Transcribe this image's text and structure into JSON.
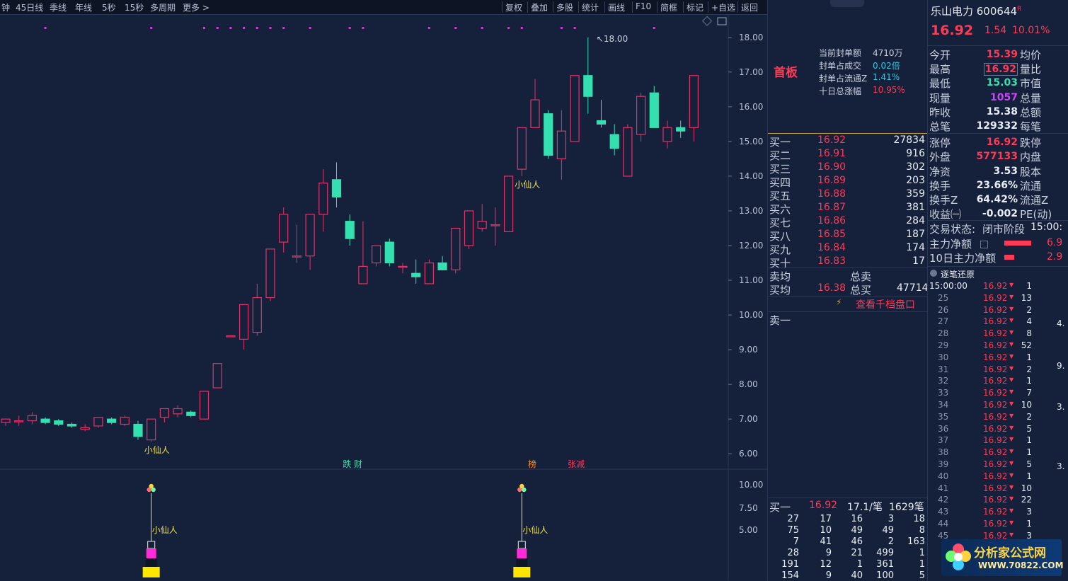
{
  "toolbar": {
    "left_items": [
      "钟",
      "45日线",
      "季线",
      "年线",
      "5秒",
      "15秒",
      "多周期",
      "更多 >"
    ],
    "right_items": [
      "复权",
      "叠加",
      "多股",
      "统计",
      "画线",
      "F10",
      "简框",
      "标记",
      "+自选",
      "返回"
    ]
  },
  "chart_data": {
    "type": "candlestick",
    "ylim": [
      5.8,
      18.2
    ],
    "y_ticks": [
      "18.00",
      "17.00",
      "16.00",
      "15.00",
      "14.00",
      "13.00",
      "12.00",
      "11.00",
      "10.00",
      "9.00",
      "8.00",
      "7.00",
      "6.00"
    ],
    "sub_ticks": [
      "10.00",
      "7.50",
      "5.00"
    ],
    "max_label": "18.00",
    "candles": [
      {
        "o": 6.9,
        "h": 7.0,
        "l": 6.8,
        "c": 7.0
      },
      {
        "o": 6.95,
        "h": 7.1,
        "l": 6.8,
        "c": 6.95
      },
      {
        "o": 6.95,
        "h": 7.2,
        "l": 6.85,
        "c": 7.1
      },
      {
        "o": 7.0,
        "h": 7.05,
        "l": 6.85,
        "c": 6.9
      },
      {
        "o": 6.95,
        "h": 7.0,
        "l": 6.8,
        "c": 6.85
      },
      {
        "o": 6.85,
        "h": 6.9,
        "l": 6.75,
        "c": 6.8
      },
      {
        "o": 6.7,
        "h": 6.85,
        "l": 6.65,
        "c": 6.75
      },
      {
        "o": 6.8,
        "h": 7.05,
        "l": 6.75,
        "c": 7.05
      },
      {
        "o": 7.0,
        "h": 7.05,
        "l": 6.85,
        "c": 6.9
      },
      {
        "o": 6.85,
        "h": 7.1,
        "l": 6.8,
        "c": 7.05
      },
      {
        "o": 6.85,
        "h": 6.95,
        "l": 6.4,
        "c": 6.5
      },
      {
        "o": 6.4,
        "h": 7.0,
        "l": 6.35,
        "c": 7.0
      },
      {
        "o": 7.05,
        "h": 7.3,
        "l": 6.9,
        "c": 7.3
      },
      {
        "o": 7.15,
        "h": 7.4,
        "l": 7.05,
        "c": 7.3
      },
      {
        "o": 7.2,
        "h": 7.25,
        "l": 7.05,
        "c": 7.1
      },
      {
        "o": 7.0,
        "h": 7.8,
        "l": 7.0,
        "c": 7.8
      },
      {
        "o": 7.9,
        "h": 8.6,
        "l": 7.9,
        "c": 8.6
      },
      {
        "o": 9.4,
        "h": 9.4,
        "l": 9.4,
        "c": 9.4
      },
      {
        "o": 9.3,
        "h": 10.3,
        "l": 9.0,
        "c": 10.3
      },
      {
        "o": 9.5,
        "h": 10.9,
        "l": 9.4,
        "c": 10.5
      },
      {
        "o": 10.5,
        "h": 11.9,
        "l": 10.4,
        "c": 11.9
      },
      {
        "o": 12.1,
        "h": 13.1,
        "l": 11.8,
        "c": 12.9
      },
      {
        "o": 11.7,
        "h": 12.6,
        "l": 11.5,
        "c": 11.7
      },
      {
        "o": 11.7,
        "h": 12.9,
        "l": 11.3,
        "c": 12.9
      },
      {
        "o": 12.9,
        "h": 14.2,
        "l": 12.4,
        "c": 13.8
      },
      {
        "o": 13.9,
        "h": 14.4,
        "l": 13.1,
        "c": 13.4
      },
      {
        "o": 12.7,
        "h": 12.9,
        "l": 12.0,
        "c": 12.2
      },
      {
        "o": 10.9,
        "h": 12.7,
        "l": 10.9,
        "c": 11.4
      },
      {
        "o": 11.5,
        "h": 12.0,
        "l": 11.4,
        "c": 12.0
      },
      {
        "o": 12.1,
        "h": 12.2,
        "l": 11.4,
        "c": 11.5
      },
      {
        "o": 11.4,
        "h": 11.5,
        "l": 11.2,
        "c": 11.4
      },
      {
        "o": 11.2,
        "h": 11.6,
        "l": 10.9,
        "c": 11.1
      },
      {
        "o": 10.9,
        "h": 11.6,
        "l": 10.9,
        "c": 11.5
      },
      {
        "o": 11.5,
        "h": 11.7,
        "l": 11.3,
        "c": 11.3
      },
      {
        "o": 11.3,
        "h": 12.5,
        "l": 11.2,
        "c": 12.5
      },
      {
        "o": 12.0,
        "h": 13.0,
        "l": 11.9,
        "c": 13.0
      },
      {
        "o": 12.5,
        "h": 13.2,
        "l": 12.4,
        "c": 12.7
      },
      {
        "o": 12.6,
        "h": 13.1,
        "l": 12.0,
        "c": 12.6
      },
      {
        "o": 12.4,
        "h": 14.0,
        "l": 12.4,
        "c": 14.0
      },
      {
        "o": 14.2,
        "h": 15.4,
        "l": 14.0,
        "c": 15.4
      },
      {
        "o": 15.4,
        "h": 16.8,
        "l": 15.4,
        "c": 16.2
      },
      {
        "o": 15.8,
        "h": 15.9,
        "l": 14.5,
        "c": 14.6
      },
      {
        "o": 14.5,
        "h": 15.9,
        "l": 13.9,
        "c": 15.3
      },
      {
        "o": 15.0,
        "h": 16.9,
        "l": 15.0,
        "c": 16.9
      },
      {
        "o": 16.9,
        "h": 18.0,
        "l": 15.8,
        "c": 16.3
      },
      {
        "o": 15.6,
        "h": 16.2,
        "l": 15.4,
        "c": 15.5
      },
      {
        "o": 15.2,
        "h": 15.5,
        "l": 14.6,
        "c": 14.8
      },
      {
        "o": 14.0,
        "h": 15.5,
        "l": 14.0,
        "c": 15.4
      },
      {
        "o": 15.2,
        "h": 16.4,
        "l": 15.0,
        "c": 16.3
      },
      {
        "o": 16.4,
        "h": 16.6,
        "l": 15.4,
        "c": 15.4
      },
      {
        "o": 15.0,
        "h": 15.6,
        "l": 14.8,
        "c": 15.4
      },
      {
        "o": 15.4,
        "h": 15.6,
        "l": 15.1,
        "c": 15.3
      },
      {
        "o": 15.4,
        "h": 16.9,
        "l": 15.0,
        "c": 16.9
      }
    ],
    "annotations": [
      {
        "label": "小仙人",
        "candle": 11,
        "color": "#f0e04a"
      },
      {
        "label": "小仙人",
        "candle": 39,
        "color": "#f0e04a"
      }
    ],
    "bottom_badges": [
      {
        "label": "跌 财",
        "candle": 26,
        "color": "#35e0b0"
      },
      {
        "label": "榜",
        "candle": 40,
        "color": "#ff8a2a"
      },
      {
        "label": "张减",
        "candle": 43,
        "color": "#ff3a55"
      }
    ],
    "indicator_markers": [
      {
        "label": "小仙人",
        "candle": 11
      },
      {
        "label": "小仙人",
        "candle": 39
      }
    ],
    "top_dots": [
      3,
      11,
      15,
      16,
      17,
      18,
      19,
      20,
      21,
      23,
      26,
      27,
      32,
      34,
      36,
      38,
      39,
      42,
      43,
      49
    ]
  },
  "orderbook": {
    "badge": "首板",
    "seal_info": [
      {
        "label": "当前封单额",
        "value": "4710万",
        "color": "#c9d1e0"
      },
      {
        "label": "封单占成交",
        "value": "0.02倍",
        "color": "#33c9e0"
      },
      {
        "label": "封单占流通Z",
        "value": "1.41%",
        "color": "#33c9e0"
      },
      {
        "label": "十日总涨幅",
        "value": "10.95%",
        "color": "#ff3a55"
      }
    ],
    "bids": [
      {
        "label": "买一",
        "price": "16.92",
        "vol": "27834"
      },
      {
        "label": "买二",
        "price": "16.91",
        "vol": "916"
      },
      {
        "label": "买三",
        "price": "16.90",
        "vol": "302"
      },
      {
        "label": "买四",
        "price": "16.89",
        "vol": "203"
      },
      {
        "label": "买五",
        "price": "16.88",
        "vol": "359"
      },
      {
        "label": "买六",
        "price": "16.87",
        "vol": "381"
      },
      {
        "label": "买七",
        "price": "16.86",
        "vol": "284"
      },
      {
        "label": "买八",
        "price": "16.85",
        "vol": "187"
      },
      {
        "label": "买九",
        "price": "16.84",
        "vol": "174"
      },
      {
        "label": "买十",
        "price": "16.83",
        "vol": "17"
      }
    ],
    "avg_sell_label": "卖均",
    "total_sell_label": "总卖",
    "avg_buy_label": "买均",
    "avg_buy_price": "16.38",
    "total_buy_label": "总买",
    "total_buy": "47714",
    "link": "查看千档盘口",
    "sell_one": "卖一",
    "bottom_row": {
      "label": "买一",
      "price": "16.92",
      "per": "17.1/笔",
      "count": "1629笔"
    },
    "queue": [
      [
        "27",
        "17",
        "16",
        "3",
        "18"
      ],
      [
        "75",
        "10",
        "49",
        "49",
        "8"
      ],
      [
        "7",
        "41",
        "46",
        "2",
        "163"
      ],
      [
        "28",
        "9",
        "21",
        "499",
        "1"
      ],
      [
        "191",
        "12",
        "1",
        "361",
        "1"
      ],
      [
        "154",
        "9",
        "40",
        "100",
        "5"
      ]
    ]
  },
  "quote": {
    "name": "乐山电力 600644",
    "flag": "R",
    "price": "16.92",
    "change": "1.54",
    "pct": "10.01%",
    "rows": [
      {
        "l": "今开",
        "v": "15.39",
        "vc": "#ff3a55",
        "r": "均价"
      },
      {
        "l": "最高",
        "v": "16.92",
        "vc": "#ff3a55",
        "r": "量比",
        "boxed": true
      },
      {
        "l": "最低",
        "v": "15.03",
        "vc": "#35e0b0",
        "r": "市值"
      },
      {
        "l": "现量",
        "v": "1057",
        "vc": "#cc44ff",
        "r": "总量"
      },
      {
        "l": "昨收",
        "v": "15.38",
        "vc": "#e8edf5",
        "r": "总额"
      },
      {
        "l": "总笔",
        "v": "129332",
        "vc": "#e8edf5",
        "r": "每笔"
      },
      {
        "l": "涨停",
        "v": "16.92",
        "vc": "#ff3a55",
        "r": "跌停"
      },
      {
        "l": "外盘",
        "v": "577133",
        "vc": "#ff3a55",
        "r": "内盘"
      },
      {
        "l": "净资",
        "v": "3.53",
        "vc": "#e8edf5",
        "r": "股本"
      },
      {
        "l": "换手",
        "v": "23.66%",
        "vc": "#e8edf5",
        "r": "流通"
      },
      {
        "l": "换手Z",
        "v": "64.42%",
        "vc": "#e8edf5",
        "r": "流通Z"
      },
      {
        "l": "收益㈠",
        "v": "-0.002",
        "vc": "#e8edf5",
        "r": "PE(动)"
      }
    ],
    "status_label": "交易状态:",
    "status_value": "闭市阶段",
    "status_time": "15:00:",
    "main_flow_label": "主力净额",
    "main_flow_value": "6.9",
    "ten_day_label": "10日主力净额",
    "ten_day_value": "2.9",
    "tick_header": "逐笔还原",
    "ticks": [
      {
        "t": "15:00:00",
        "p": "16.92",
        "v": "1"
      },
      {
        "t": "25",
        "p": "16.92",
        "v": "13"
      },
      {
        "t": "26",
        "p": "16.92",
        "v": "2"
      },
      {
        "t": "27",
        "p": "16.92",
        "v": "4"
      },
      {
        "t": "28",
        "p": "16.92",
        "v": "8"
      },
      {
        "t": "29",
        "p": "16.92",
        "v": "52"
      },
      {
        "t": "30",
        "p": "16.92",
        "v": "1"
      },
      {
        "t": "31",
        "p": "16.92",
        "v": "2"
      },
      {
        "t": "32",
        "p": "16.92",
        "v": "1"
      },
      {
        "t": "33",
        "p": "16.92",
        "v": "7"
      },
      {
        "t": "34",
        "p": "16.92",
        "v": "10"
      },
      {
        "t": "35",
        "p": "16.92",
        "v": "2"
      },
      {
        "t": "36",
        "p": "16.92",
        "v": "5"
      },
      {
        "t": "37",
        "p": "16.92",
        "v": "1"
      },
      {
        "t": "38",
        "p": "16.92",
        "v": "1"
      },
      {
        "t": "39",
        "p": "16.92",
        "v": "5"
      },
      {
        "t": "40",
        "p": "16.92",
        "v": "1"
      },
      {
        "t": "41",
        "p": "16.92",
        "v": "10"
      },
      {
        "t": "42",
        "p": "16.92",
        "v": "22"
      },
      {
        "t": "43",
        "p": "16.92",
        "v": "3"
      },
      {
        "t": "44",
        "p": "16.92",
        "v": "1"
      },
      {
        "t": "45",
        "p": "16.92",
        "v": "3"
      }
    ],
    "side_values": [
      "4.",
      "9.",
      "3.",
      "3."
    ]
  },
  "logo": {
    "title": "分析家公式网",
    "url": "WWW.70822.COM"
  },
  "colors": {
    "up": "#e0336a",
    "down": "#35e0b0",
    "bg": "#15203a",
    "grid": "#2a3754",
    "accent": "#ff3a55"
  }
}
